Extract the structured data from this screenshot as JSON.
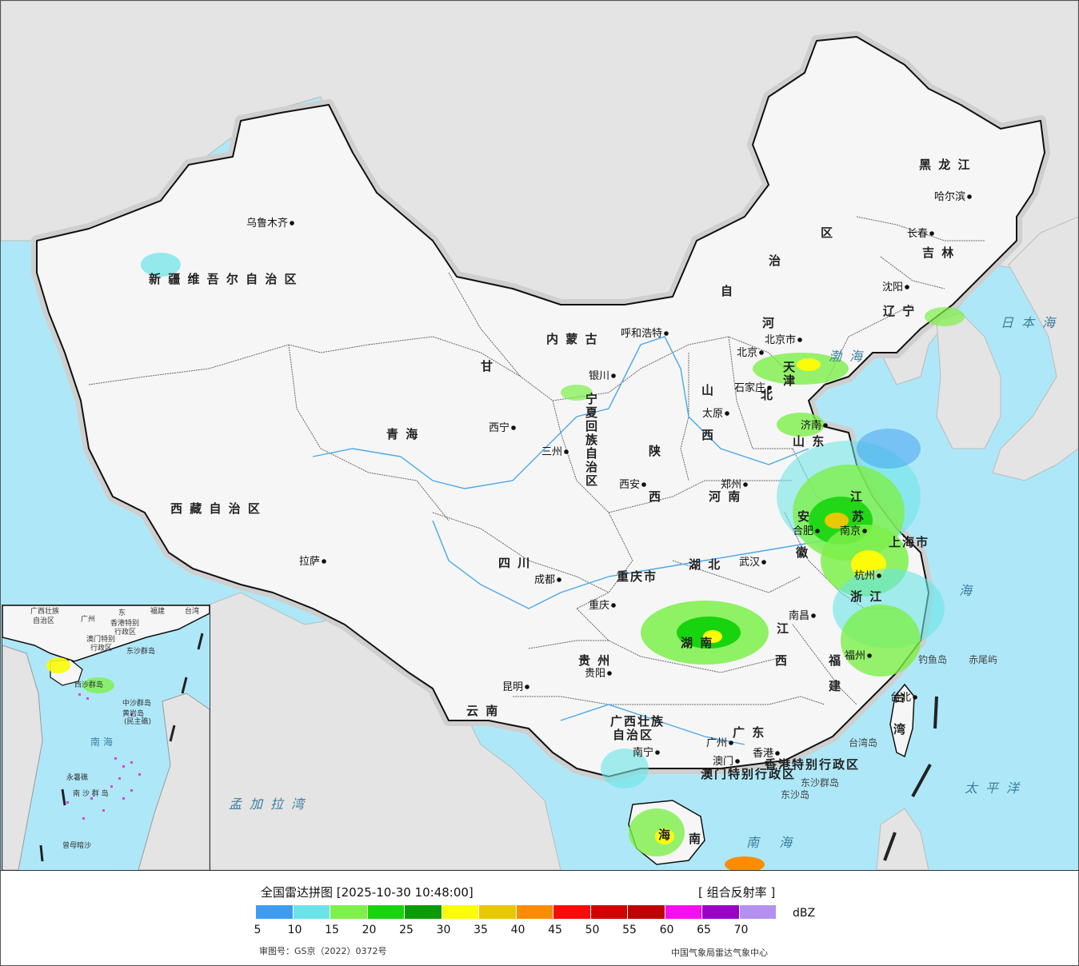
{
  "map": {
    "regions": [
      {
        "id": "xinjiang",
        "label": "新 疆 维 吾 尔 自 治 区"
      },
      {
        "id": "xizang",
        "label": "西 藏 自 治 区"
      },
      {
        "id": "qinghai",
        "label": "青  海"
      },
      {
        "id": "gansu",
        "label": "甘"
      },
      {
        "id": "neimenggu",
        "label": "内  蒙  古"
      },
      {
        "id": "neimenggu2",
        "label": "自"
      },
      {
        "id": "neimenggu3",
        "label": "治"
      },
      {
        "id": "neimenggu4",
        "label": "区"
      },
      {
        "id": "heilongjiang",
        "label": "黑 龙 江"
      },
      {
        "id": "jilin",
        "label": "吉 林"
      },
      {
        "id": "liaoning",
        "label": "辽 宁"
      },
      {
        "id": "hebei",
        "label": "河"
      },
      {
        "id": "hebei2",
        "label": "北"
      },
      {
        "id": "shanxi",
        "label": "山"
      },
      {
        "id": "shanxi2",
        "label": "西"
      },
      {
        "id": "shaanxi",
        "label": "陕"
      },
      {
        "id": "shaanxi2",
        "label": "西"
      },
      {
        "id": "shandong",
        "label": "山 东"
      },
      {
        "id": "henan",
        "label": "河 南"
      },
      {
        "id": "sichuan",
        "label": "四   川"
      },
      {
        "id": "chongqing",
        "label": "重庆市"
      },
      {
        "id": "hubei",
        "label": "湖  北"
      },
      {
        "id": "hunan",
        "label": "湖  南"
      },
      {
        "id": "jiangxi",
        "label": "江"
      },
      {
        "id": "jiangxi2",
        "label": "西"
      },
      {
        "id": "anhui",
        "label": "安"
      },
      {
        "id": "anhui2",
        "label": "徽"
      },
      {
        "id": "jiangsu",
        "label": "江"
      },
      {
        "id": "jiangsu2",
        "label": "苏"
      },
      {
        "id": "zhejiang",
        "label": "浙 江"
      },
      {
        "id": "shanghai",
        "label": "上海市"
      },
      {
        "id": "fujian",
        "label": "福"
      },
      {
        "id": "fujian2",
        "label": "建"
      },
      {
        "id": "guizhou",
        "label": "贵  州"
      },
      {
        "id": "yunnan",
        "label": "云  南"
      },
      {
        "id": "guangxi",
        "label": "广西壮族"
      },
      {
        "id": "guangxi2",
        "label": "自治区"
      },
      {
        "id": "guangdong",
        "label": "广  东"
      },
      {
        "id": "taiwan",
        "label": "台"
      },
      {
        "id": "taiwan2",
        "label": "湾"
      },
      {
        "id": "hainan",
        "label": "海"
      },
      {
        "id": "hainan2",
        "label": "南"
      },
      {
        "id": "ningxia",
        "label": "宁夏回族自治区"
      },
      {
        "id": "tianjin",
        "label": "天津"
      },
      {
        "id": "hk",
        "label": "香港特别行政区"
      },
      {
        "id": "macau",
        "label": "澳门特别行政区"
      }
    ],
    "cities": [
      {
        "id": "urumqi",
        "label": "乌鲁木齐"
      },
      {
        "id": "lhasa",
        "label": "拉萨"
      },
      {
        "id": "xining",
        "label": "西宁"
      },
      {
        "id": "lanzhou",
        "label": "三州"
      },
      {
        "id": "yinchuan",
        "label": "银川"
      },
      {
        "id": "hohhot",
        "label": "呼和浩特"
      },
      {
        "id": "beijing",
        "label": "北京"
      },
      {
        "id": "beijingshi",
        "label": "北京市"
      },
      {
        "id": "shijiazhuang",
        "label": "石家庄"
      },
      {
        "id": "taiyuan",
        "label": "太原"
      },
      {
        "id": "jinan",
        "label": "济南"
      },
      {
        "id": "zhengzhou",
        "label": "郑州"
      },
      {
        "id": "xian",
        "label": "西安"
      },
      {
        "id": "chengdu",
        "label": "成都"
      },
      {
        "id": "chongqingc",
        "label": "重庆"
      },
      {
        "id": "wuhan",
        "label": "武汉"
      },
      {
        "id": "hefei",
        "label": "合肥"
      },
      {
        "id": "nanjing",
        "label": "南京"
      },
      {
        "id": "hangzhou",
        "label": "杭州"
      },
      {
        "id": "nanchang",
        "label": "南昌"
      },
      {
        "id": "fuzhou",
        "label": "福州"
      },
      {
        "id": "guiyang",
        "label": "贵阳"
      },
      {
        "id": "kunming",
        "label": "昆明"
      },
      {
        "id": "nanning",
        "label": "南宁"
      },
      {
        "id": "guangzhou",
        "label": "广州"
      },
      {
        "id": "aomen",
        "label": "澳门"
      },
      {
        "id": "xianggang",
        "label": "香港"
      },
      {
        "id": "taibei",
        "label": "台北"
      },
      {
        "id": "harbin",
        "label": "哈尔滨"
      },
      {
        "id": "changchun",
        "label": "长春"
      },
      {
        "id": "shenyang",
        "label": "沈阳"
      }
    ],
    "seas": [
      {
        "id": "japan_sea",
        "label": "日本海"
      },
      {
        "id": "pacific",
        "label": "太平洋"
      },
      {
        "id": "donghai",
        "label": "海"
      },
      {
        "id": "nanhai",
        "label": "南  海"
      },
      {
        "id": "bohai",
        "label": "渤海"
      },
      {
        "id": "bengal",
        "label": "孟加拉湾"
      }
    ],
    "islands": [
      {
        "id": "diaoyu",
        "label": "钓鱼岛"
      },
      {
        "id": "chiwei",
        "label": "赤尾屿"
      },
      {
        "id": "taiwan_island",
        "label": "台湾岛"
      },
      {
        "id": "dongsha_qd",
        "label": "东沙群岛"
      },
      {
        "id": "dongsha_d",
        "label": "东沙岛"
      }
    ],
    "inset_labels": [
      {
        "id": "i_guangxi",
        "label": "广西壮族"
      },
      {
        "id": "i_guangxi2",
        "label": "自治区"
      },
      {
        "id": "i_guangzhou",
        "label": "广州"
      },
      {
        "id": "i_dong",
        "label": "东"
      },
      {
        "id": "i_fujian",
        "label": "福建"
      },
      {
        "id": "i_taiwan",
        "label": "台湾"
      },
      {
        "id": "i_hk",
        "label": "香港特别"
      },
      {
        "id": "i_hk2",
        "label": "行政区"
      },
      {
        "id": "i_macau",
        "label": "澳门特别"
      },
      {
        "id": "i_macau2",
        "label": "行政区"
      },
      {
        "id": "i_dongsha",
        "label": "东沙群岛"
      },
      {
        "id": "i_xisha",
        "label": "西沙群岛"
      },
      {
        "id": "i_zhongsha",
        "label": "中沙群岛"
      },
      {
        "id": "i_huangyan",
        "label": "黄岩岛"
      },
      {
        "id": "i_minzhujiao",
        "label": "(民主礁)"
      },
      {
        "id": "i_nanhai",
        "label": "南 海"
      },
      {
        "id": "i_yongshu",
        "label": "永暑礁"
      },
      {
        "id": "i_nansha",
        "label": "南 沙 群 岛"
      },
      {
        "id": "i_zengmu",
        "label": "曾母暗沙"
      }
    ]
  },
  "legend": {
    "title": "全国雷达拼图 [2025-10-30 10:48:00]",
    "product": "[ 组合反射率 ]",
    "unit": "dBZ",
    "ticks": [
      "5",
      "10",
      "15",
      "20",
      "25",
      "30",
      "35",
      "40",
      "45",
      "50",
      "55",
      "60",
      "65",
      "70"
    ],
    "colors": [
      "#3d9cf0",
      "#6ae4e8",
      "#7df04a",
      "#17d40f",
      "#0b9b06",
      "#fbfb0a",
      "#e8c800",
      "#fe8c00",
      "#fb0a0a",
      "#d40000",
      "#be0000",
      "#f70ef0",
      "#9a00c8",
      "#b491f0"
    ],
    "approval": "审图号：GS京（2022）0372号",
    "source": "中国气象局雷达气象中心"
  }
}
